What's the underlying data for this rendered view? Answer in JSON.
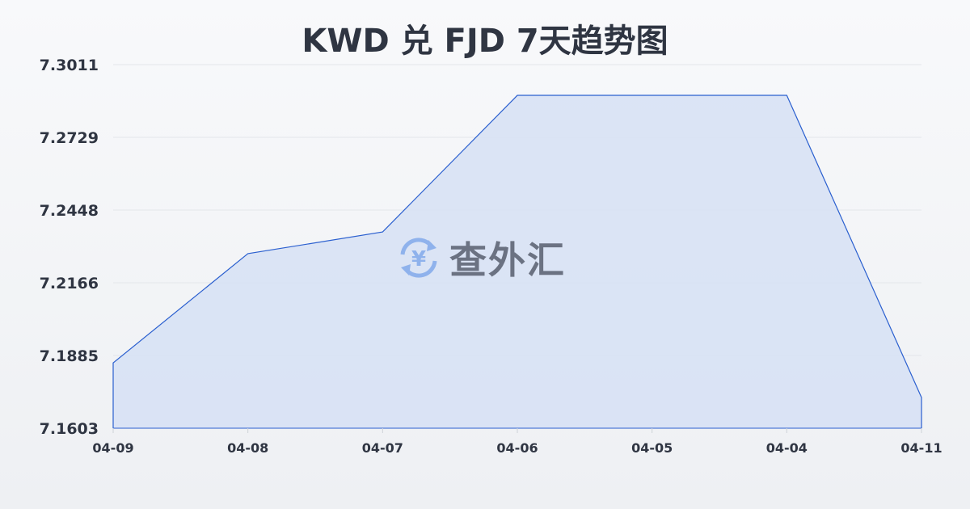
{
  "chart_data": {
    "type": "area",
    "title": "KWD 兑 FJD 7天趋势图",
    "categories": [
      "04-09",
      "04-08",
      "04-07",
      "04-06",
      "04-05",
      "04-04",
      "04-11"
    ],
    "values": [
      7.1856,
      7.2279,
      7.2363,
      7.2892,
      7.2892,
      7.2892,
      7.1722
    ],
    "yticks": [
      "7.3011",
      "7.2729",
      "7.2448",
      "7.2166",
      "7.1885",
      "7.1603"
    ],
    "ylim": [
      7.1603,
      7.3011
    ],
    "grid": true,
    "colors": {
      "line": "#2a5fcf",
      "fill": "#d6e0f5"
    }
  },
  "watermark": {
    "text": "查外汇",
    "icon": "yen-exchange-icon"
  }
}
